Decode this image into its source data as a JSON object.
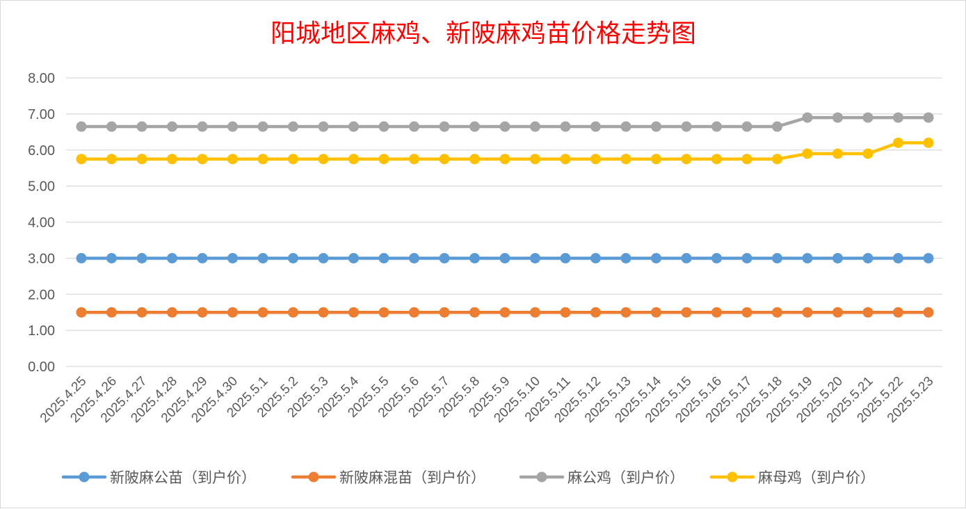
{
  "chart_data": {
    "type": "line",
    "title": "阳城地区麻鸡、新陂麻鸡苗价格走势图",
    "xlabel": "",
    "ylabel": "",
    "ylim": [
      0,
      8
    ],
    "ytick_step": 1,
    "ytick_labels": [
      "0.00",
      "1.00",
      "2.00",
      "3.00",
      "4.00",
      "5.00",
      "6.00",
      "7.00",
      "8.00"
    ],
    "grid": true,
    "legend_position": "bottom",
    "categories": [
      "2025.4.25",
      "2025.4.26",
      "2025.4.27",
      "2025.4.28",
      "2025.4.29",
      "2025.4.30",
      "2025.5.1",
      "2025.5.2",
      "2025.5.3",
      "2025.5.4",
      "2025.5.5",
      "2025.5.6",
      "2025.5.7",
      "2025.5.8",
      "2025.5.9",
      "2025.5.10",
      "2025.5.11",
      "2025.5.12",
      "2025.5.13",
      "2025.5.14",
      "2025.5.15",
      "2025.5.16",
      "2025.5.17",
      "2025.5.18",
      "2025.5.19",
      "2025.5.20",
      "2025.5.21",
      "2025.5.22",
      "2025.5.23"
    ],
    "series": [
      {
        "name": "新陂麻公苗（到户价）",
        "color": "#5b9bd5",
        "values": [
          3.0,
          3.0,
          3.0,
          3.0,
          3.0,
          3.0,
          3.0,
          3.0,
          3.0,
          3.0,
          3.0,
          3.0,
          3.0,
          3.0,
          3.0,
          3.0,
          3.0,
          3.0,
          3.0,
          3.0,
          3.0,
          3.0,
          3.0,
          3.0,
          3.0,
          3.0,
          3.0,
          3.0,
          3.0
        ]
      },
      {
        "name": "新陂麻混苗（到户价）",
        "color": "#ed7d31",
        "values": [
          1.5,
          1.5,
          1.5,
          1.5,
          1.5,
          1.5,
          1.5,
          1.5,
          1.5,
          1.5,
          1.5,
          1.5,
          1.5,
          1.5,
          1.5,
          1.5,
          1.5,
          1.5,
          1.5,
          1.5,
          1.5,
          1.5,
          1.5,
          1.5,
          1.5,
          1.5,
          1.5,
          1.5,
          1.5
        ]
      },
      {
        "name": "麻公鸡（到户价）",
        "color": "#a5a5a5",
        "values": [
          6.65,
          6.65,
          6.65,
          6.65,
          6.65,
          6.65,
          6.65,
          6.65,
          6.65,
          6.65,
          6.65,
          6.65,
          6.65,
          6.65,
          6.65,
          6.65,
          6.65,
          6.65,
          6.65,
          6.65,
          6.65,
          6.65,
          6.65,
          6.65,
          6.9,
          6.9,
          6.9,
          6.9,
          6.9
        ]
      },
      {
        "name": "麻母鸡（到户价）",
        "color": "#ffc000",
        "values": [
          5.75,
          5.75,
          5.75,
          5.75,
          5.75,
          5.75,
          5.75,
          5.75,
          5.75,
          5.75,
          5.75,
          5.75,
          5.75,
          5.75,
          5.75,
          5.75,
          5.75,
          5.75,
          5.75,
          5.75,
          5.75,
          5.75,
          5.75,
          5.75,
          5.9,
          5.9,
          5.9,
          6.2,
          6.2
        ]
      }
    ]
  }
}
